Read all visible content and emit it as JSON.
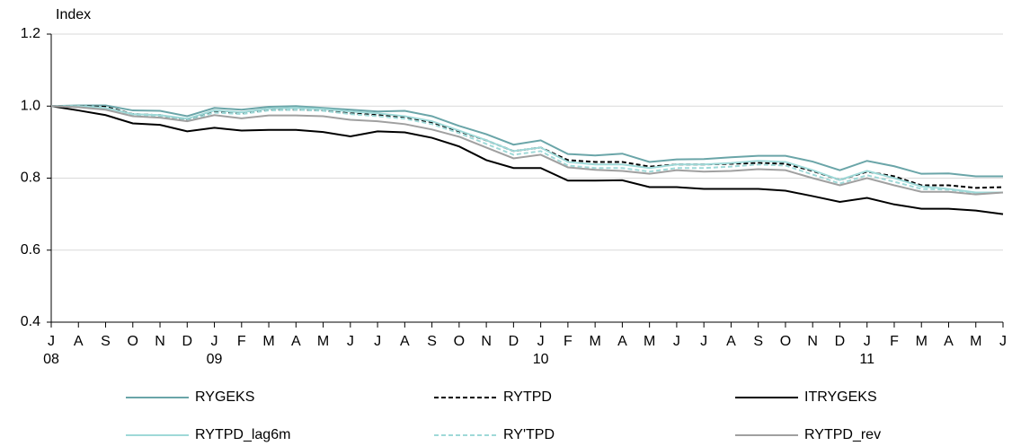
{
  "chart_data": {
    "type": "line",
    "y_label": "Index",
    "categories": [
      "J",
      "A",
      "S",
      "O",
      "N",
      "D",
      "J",
      "F",
      "M",
      "A",
      "M",
      "J",
      "J",
      "A",
      "S",
      "O",
      "N",
      "D",
      "J",
      "F",
      "M",
      "A",
      "M",
      "J",
      "J",
      "A",
      "S",
      "O",
      "N",
      "D",
      "J",
      "F",
      "M",
      "A",
      "M",
      "J"
    ],
    "category_years": [
      "08",
      null,
      null,
      null,
      null,
      null,
      "09",
      null,
      null,
      null,
      null,
      null,
      null,
      null,
      null,
      null,
      null,
      null,
      "10",
      null,
      null,
      null,
      null,
      null,
      null,
      null,
      null,
      null,
      null,
      null,
      "11",
      null,
      null,
      null,
      null,
      null
    ],
    "ylim": [
      0.4,
      1.2
    ],
    "yticks": [
      0.4,
      0.6,
      0.8,
      {
        "value": 1,
        "label": "1.0"
      },
      1.2
    ],
    "grid": true,
    "series": [
      {
        "name": "RYGEKS",
        "color": "#6aa5a8",
        "dashed": false,
        "values": [
          1.0,
          1.002,
          1.002,
          0.988,
          0.987,
          0.972,
          0.995,
          0.99,
          0.998,
          1.0,
          0.995,
          0.99,
          0.985,
          0.987,
          0.972,
          0.945,
          0.922,
          0.893,
          0.905,
          0.867,
          0.863,
          0.868,
          0.845,
          0.852,
          0.853,
          0.858,
          0.862,
          0.862,
          0.846,
          0.822,
          0.848,
          0.833,
          0.812,
          0.813,
          0.805,
          0.805
        ]
      },
      {
        "name": "RYTPD",
        "color": "#000000",
        "dashed": true,
        "values": [
          1.0,
          1.0,
          0.998,
          0.978,
          0.975,
          0.962,
          0.985,
          0.98,
          0.99,
          0.99,
          0.988,
          0.98,
          0.975,
          0.97,
          0.955,
          0.93,
          0.905,
          0.875,
          0.885,
          0.85,
          0.845,
          0.845,
          0.832,
          0.838,
          0.838,
          0.84,
          0.842,
          0.84,
          0.82,
          0.795,
          0.818,
          0.805,
          0.78,
          0.78,
          0.773,
          0.775
        ]
      },
      {
        "name": "ITRYGEKS",
        "color": "#000000",
        "dashed": false,
        "values": [
          1.0,
          0.988,
          0.975,
          0.952,
          0.948,
          0.93,
          0.94,
          0.932,
          0.934,
          0.934,
          0.928,
          0.916,
          0.93,
          0.927,
          0.912,
          0.888,
          0.85,
          0.828,
          0.828,
          0.793,
          0.793,
          0.794,
          0.775,
          0.775,
          0.77,
          0.77,
          0.77,
          0.765,
          0.75,
          0.734,
          0.745,
          0.727,
          0.715,
          0.715,
          0.71,
          0.7
        ]
      },
      {
        "name": "RYTPD_lag6m",
        "color": "#9fd9d8",
        "dashed": false,
        "values": [
          1.0,
          1.0,
          0.995,
          0.978,
          0.975,
          0.965,
          0.988,
          0.983,
          0.993,
          0.995,
          0.992,
          0.985,
          0.98,
          0.972,
          0.958,
          0.932,
          0.905,
          0.875,
          0.885,
          0.845,
          0.838,
          0.838,
          0.828,
          0.838,
          0.838,
          0.842,
          0.848,
          0.845,
          0.822,
          0.795,
          0.82,
          0.8,
          0.777,
          0.77,
          0.76,
          0.76
        ]
      },
      {
        "name": "RY'TPD",
        "color": "#9fd9d8",
        "dashed": true,
        "values": [
          1.0,
          0.998,
          0.993,
          0.975,
          0.97,
          0.96,
          0.982,
          0.978,
          0.988,
          0.99,
          0.987,
          0.978,
          0.972,
          0.965,
          0.95,
          0.925,
          0.895,
          0.865,
          0.875,
          0.835,
          0.828,
          0.828,
          0.818,
          0.828,
          0.828,
          0.832,
          0.838,
          0.835,
          0.81,
          0.785,
          0.808,
          0.79,
          0.77,
          0.768,
          0.758,
          0.76
        ]
      },
      {
        "name": "RYTPD_rev",
        "color": "#a0a0a0",
        "dashed": false,
        "values": [
          1.0,
          0.997,
          0.99,
          0.972,
          0.968,
          0.958,
          0.975,
          0.966,
          0.974,
          0.974,
          0.972,
          0.962,
          0.958,
          0.95,
          0.935,
          0.915,
          0.885,
          0.855,
          0.865,
          0.83,
          0.823,
          0.82,
          0.812,
          0.822,
          0.818,
          0.82,
          0.825,
          0.822,
          0.8,
          0.78,
          0.8,
          0.78,
          0.762,
          0.762,
          0.755,
          0.76
        ]
      }
    ]
  }
}
